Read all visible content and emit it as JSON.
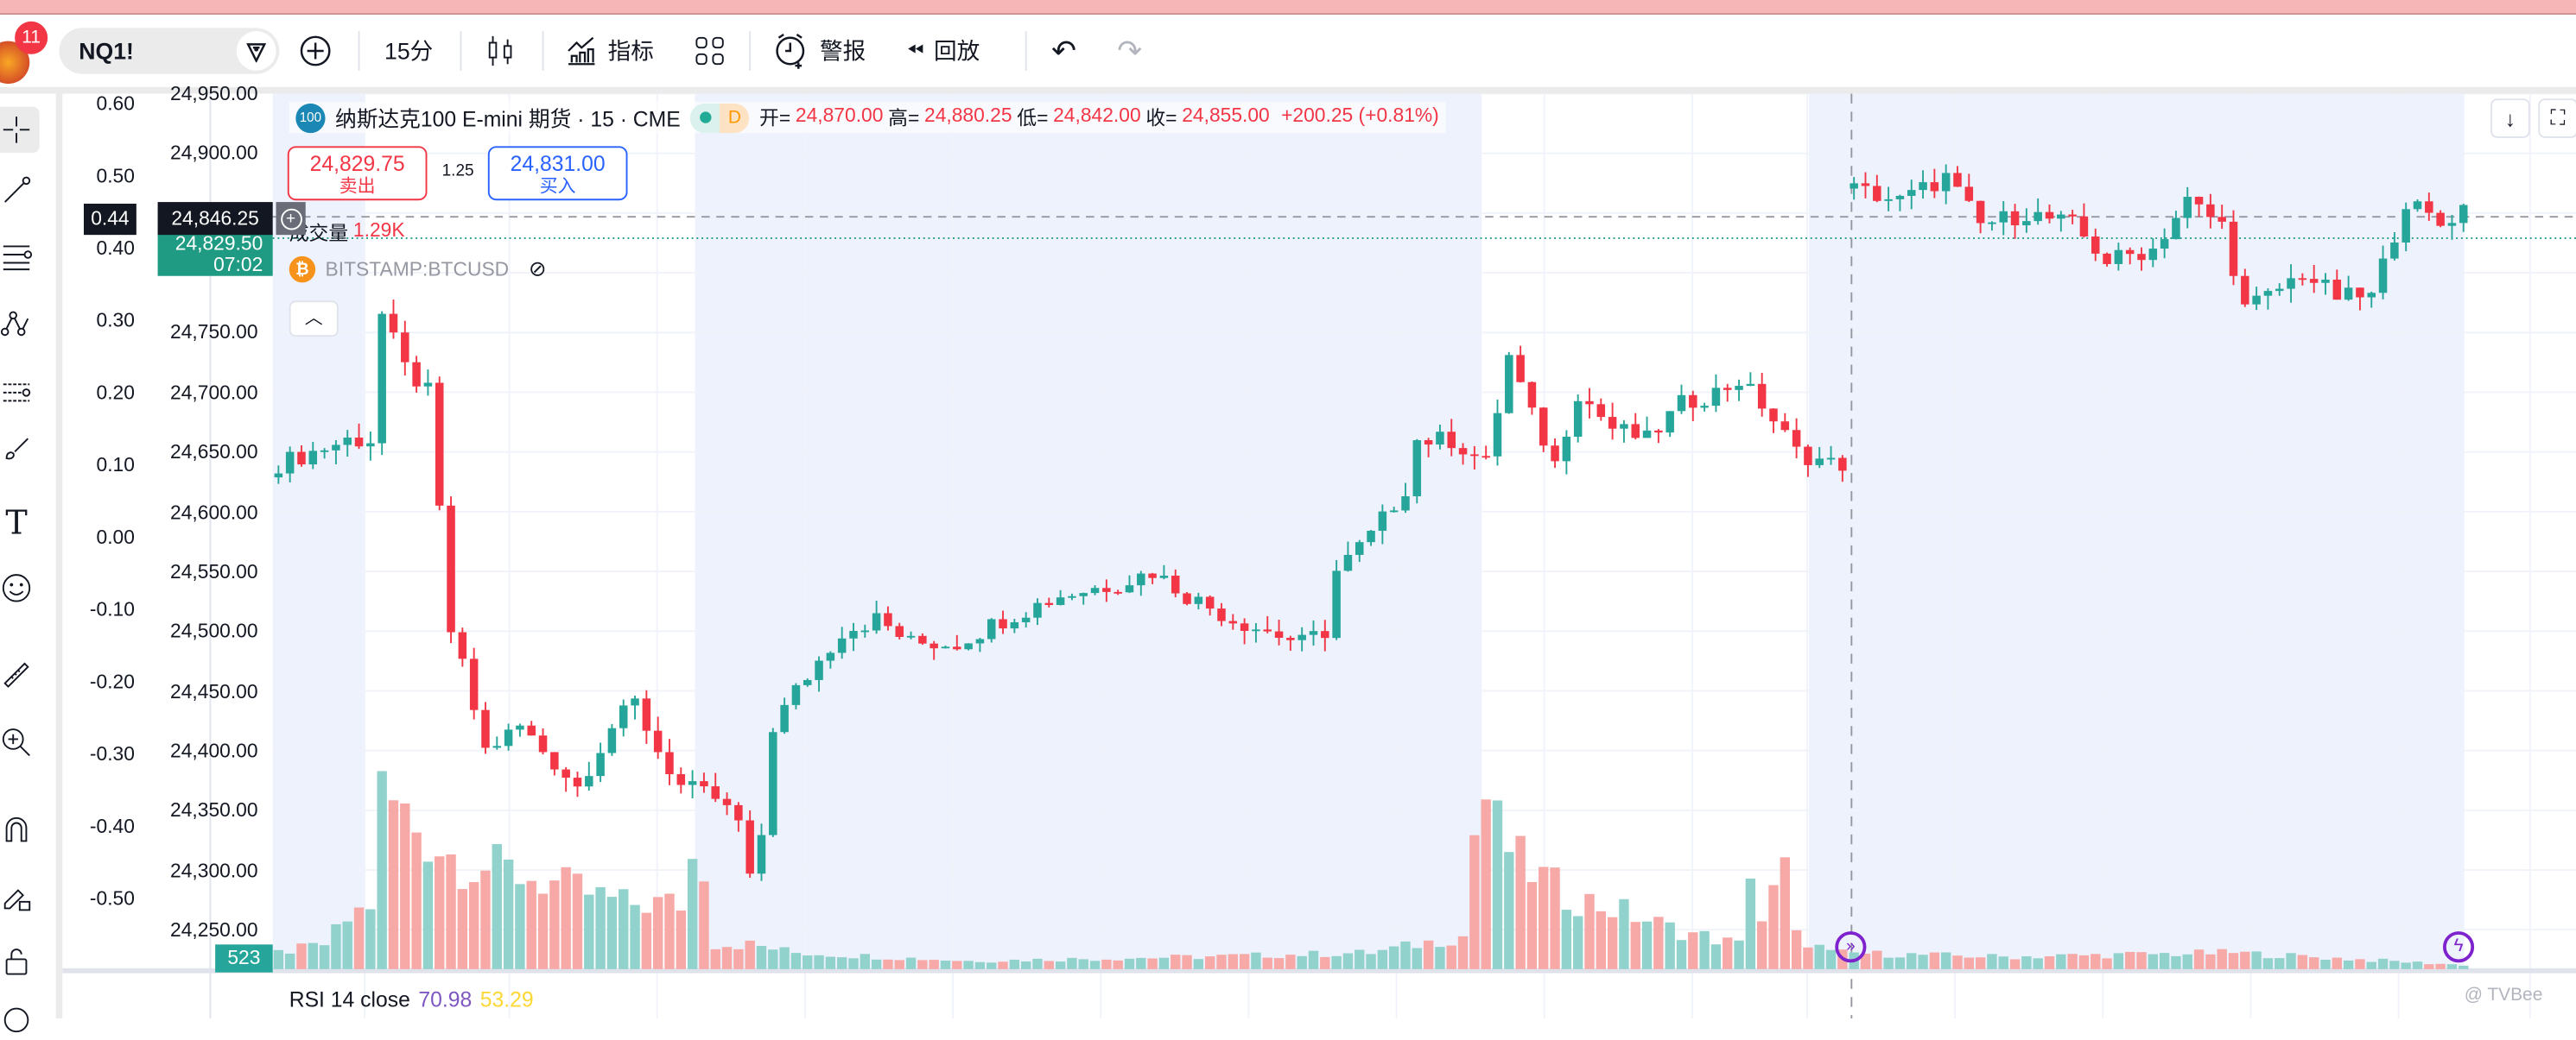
{
  "topbar": {
    "notif_count": "11",
    "symbol": "NQ1!",
    "interval": "15分",
    "indicators": "指标",
    "alert": "警报",
    "replay": "回放"
  },
  "legend": {
    "logo": "100",
    "title": "纳斯达克100 E-mini 期货 · 15 · CME",
    "session": "D",
    "open_lbl": "开=",
    "open": "24,870.00",
    "high_lbl": "高=",
    "high": "24,880.25",
    "low_lbl": "低=",
    "low": "24,842.00",
    "close_lbl": "收=",
    "close": "24,855.00",
    "change": "+200.25 (+0.81%)"
  },
  "trade": {
    "sell_price": "24,829.75",
    "sell_label": "卖出",
    "spread": "1.25",
    "buy_price": "24,831.00",
    "buy_label": "买入"
  },
  "volume_legend": {
    "label": "成交量",
    "value": "1.29K"
  },
  "compare": {
    "symbol": "BITSTAMP:BTCUSD"
  },
  "price_axis": {
    "labels": [
      "24,950.00",
      "24,900.00",
      "24,750.00",
      "24,700.00",
      "24,650.00",
      "24,600.00",
      "24,550.00",
      "24,500.00",
      "24,450.00",
      "24,400.00",
      "24,350.00",
      "24,300.00",
      "24,250.00"
    ],
    "crosshair_price": "24,846.25",
    "last_price": "24,829.50",
    "countdown": "07:02",
    "volume_tag": "523"
  },
  "left_axis": {
    "labels": [
      "0.60",
      "0.50",
      "0.40",
      "0.30",
      "0.20",
      "0.10",
      "0.00",
      "-0.10",
      "-0.20",
      "-0.30",
      "-0.40",
      "-0.50"
    ],
    "crosshair_value": "0.44"
  },
  "rsi": {
    "label": "RSI 14 close",
    "value1": "70.98",
    "value2": "53.29"
  },
  "watermark": "@ TVBee",
  "colors": {
    "up": "#26a69a",
    "down": "#f23645",
    "up_vol": "#92d2cc",
    "down_vol": "#f7a9a7",
    "session_bg": "#eef2fd"
  },
  "chart_data": {
    "type": "candlestick",
    "ylim": [
      24230,
      24960
    ],
    "bars": 191,
    "close_keypoints": [
      [
        0,
        24640
      ],
      [
        6,
        24660
      ],
      [
        8,
        24660
      ],
      [
        9,
        24765
      ],
      [
        11,
        24720
      ],
      [
        13,
        24700
      ],
      [
        14,
        24600
      ],
      [
        15,
        24500
      ],
      [
        16,
        24470
      ],
      [
        18,
        24400
      ],
      [
        21,
        24420
      ],
      [
        23,
        24400
      ],
      [
        26,
        24370
      ],
      [
        29,
        24420
      ],
      [
        31,
        24440
      ],
      [
        33,
        24400
      ],
      [
        35,
        24370
      ],
      [
        38,
        24360
      ],
      [
        40,
        24340
      ],
      [
        41,
        24290
      ],
      [
        42,
        24330
      ],
      [
        43,
        24420
      ],
      [
        45,
        24450
      ],
      [
        49,
        24500
      ],
      [
        52,
        24510
      ],
      [
        55,
        24490
      ],
      [
        59,
        24490
      ],
      [
        63,
        24510
      ],
      [
        68,
        24530
      ],
      [
        73,
        24540
      ],
      [
        76,
        24550
      ],
      [
        79,
        24530
      ],
      [
        83,
        24510
      ],
      [
        89,
        24490
      ],
      [
        91,
        24500
      ],
      [
        92,
        24550
      ],
      [
        95,
        24580
      ],
      [
        98,
        24620
      ],
      [
        99,
        24660
      ],
      [
        102,
        24660
      ],
      [
        105,
        24640
      ],
      [
        107,
        24730
      ],
      [
        109,
        24680
      ],
      [
        111,
        24640
      ],
      [
        113,
        24700
      ],
      [
        116,
        24670
      ],
      [
        119,
        24660
      ],
      [
        122,
        24690
      ],
      [
        125,
        24700
      ],
      [
        127,
        24710
      ],
      [
        129,
        24690
      ],
      [
        132,
        24650
      ],
      [
        135,
        24640
      ],
      [
        136,
        24640
      ],
      [
        137,
        24870
      ],
      [
        141,
        24860
      ],
      [
        145,
        24880
      ],
      [
        148,
        24840
      ],
      [
        152,
        24850
      ],
      [
        156,
        24840
      ],
      [
        159,
        24810
      ],
      [
        163,
        24820
      ],
      [
        166,
        24860
      ],
      [
        169,
        24840
      ],
      [
        171,
        24770
      ],
      [
        173,
        24780
      ],
      [
        176,
        24800
      ],
      [
        179,
        24780
      ],
      [
        182,
        24780
      ],
      [
        185,
        24860
      ],
      [
        188,
        24840
      ],
      [
        190,
        24855
      ]
    ],
    "volume_keypoints_k": [
      [
        0,
        2
      ],
      [
        4,
        3
      ],
      [
        6,
        6
      ],
      [
        8,
        8
      ],
      [
        8.5,
        22
      ],
      [
        10,
        20
      ],
      [
        13,
        16
      ],
      [
        16,
        13
      ],
      [
        20,
        12
      ],
      [
        25,
        10
      ],
      [
        30,
        8
      ],
      [
        35,
        8
      ],
      [
        36.5,
        16
      ],
      [
        37.5,
        10
      ],
      [
        38,
        3
      ],
      [
        41,
        3
      ],
      [
        45,
        2
      ],
      [
        60,
        1
      ],
      [
        80,
        1.5
      ],
      [
        95,
        2
      ],
      [
        103,
        4
      ],
      [
        104.5,
        23
      ],
      [
        106,
        17
      ],
      [
        108,
        13
      ],
      [
        112,
        9
      ],
      [
        117,
        7
      ],
      [
        121,
        5
      ],
      [
        127,
        3
      ],
      [
        128,
        13
      ],
      [
        129,
        6
      ],
      [
        131,
        12
      ],
      [
        132,
        4
      ],
      [
        135,
        2
      ],
      [
        150,
        1.5
      ],
      [
        170,
        2
      ],
      [
        190,
        0.5
      ]
    ]
  }
}
